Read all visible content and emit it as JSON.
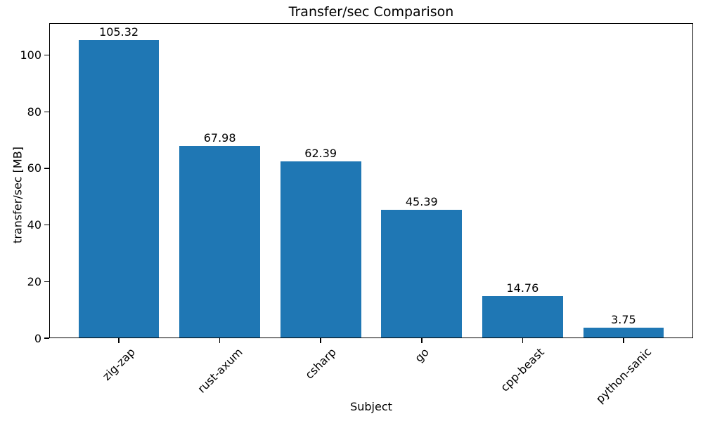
{
  "chart_data": {
    "type": "bar",
    "title": "Transfer/sec Comparison",
    "xlabel": "Subject",
    "ylabel": "transfer/sec [MB]",
    "categories": [
      "zig-zap",
      "rust-axum",
      "csharp",
      "go",
      "cpp-beast",
      "python-sanic"
    ],
    "values": [
      105.32,
      67.98,
      62.39,
      45.39,
      14.76,
      3.75
    ],
    "value_labels": [
      "105.32",
      "67.98",
      "62.39",
      "45.39",
      "14.76",
      "3.75"
    ],
    "yticks": [
      0,
      20,
      40,
      60,
      80,
      100
    ],
    "ylim": [
      0,
      111.3
    ],
    "x_tick_rotation_deg": 45,
    "grid": false,
    "legend": "none",
    "bar_color": "#1f77b4",
    "axis_color": "#000000",
    "background_color": "#ffffff"
  }
}
